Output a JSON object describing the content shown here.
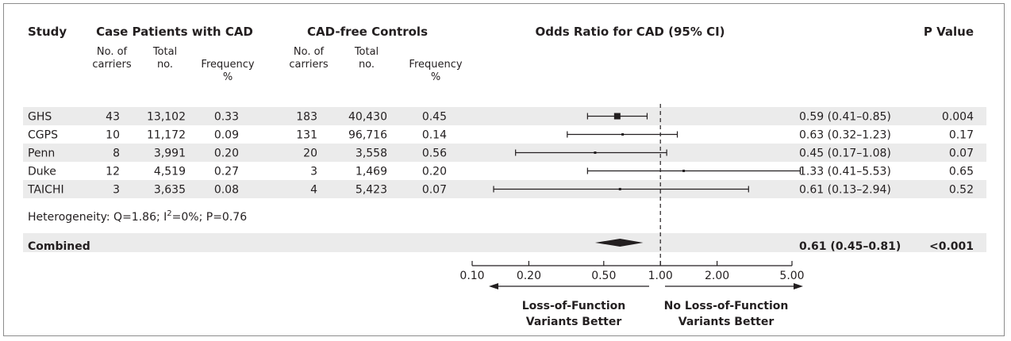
{
  "colors": {
    "shade": "#ebebeb",
    "ink": "#231f20",
    "border": "#8c8c8c"
  },
  "headers": {
    "study": "Study",
    "cases_group": "Case Patients with CAD",
    "controls_group": "CAD-free Controls",
    "or_title": "Odds Ratio for CAD (95% CI)",
    "p_value": "P Value",
    "carriers_line1": "No. of",
    "carriers_line2": "carriers",
    "total_line1": "Total",
    "total_line2": "no.",
    "freq_line1": "Frequency",
    "freq_line2": "%"
  },
  "heterogeneity": {
    "prefix": "Heterogeneity: Q=1.86; I",
    "sup": "2",
    "suffix": "=0%; P=0.76"
  },
  "combined": {
    "label": "Combined",
    "or_text": "0.61 (0.45–0.81)",
    "p": "<0.001"
  },
  "arrows": {
    "left_line1": "Loss-of-Function",
    "left_line2": "Variants Better",
    "right_line1": "No Loss-of-Function",
    "right_line2": "Variants Better"
  },
  "chart_data": {
    "type": "forest",
    "title": "Odds Ratio for CAD (95% CI)",
    "x_scale": "log",
    "xlim": [
      0.1,
      5.0
    ],
    "x_ticks": [
      {
        "value": 0.1,
        "label": "0.10"
      },
      {
        "value": 0.2,
        "label": "0.20"
      },
      {
        "value": 0.5,
        "label": "0.50"
      },
      {
        "value": 1.0,
        "label": "1.00"
      },
      {
        "value": 2.0,
        "label": "2.00"
      },
      {
        "value": 5.0,
        "label": "5.00"
      }
    ],
    "reference_line": 1.0,
    "studies": [
      {
        "study": "GHS",
        "case_carriers": "43",
        "case_total": "13,102",
        "case_freq": "0.33",
        "ctrl_carriers": "183",
        "ctrl_total": "40,430",
        "ctrl_freq": "0.45",
        "or": 0.59,
        "ci_low": 0.41,
        "ci_high": 0.85,
        "or_text": "0.59 (0.41–0.85)",
        "p": "0.004",
        "shaded": true,
        "weight": "large"
      },
      {
        "study": "CGPS",
        "case_carriers": "10",
        "case_total": "11,172",
        "case_freq": "0.09",
        "ctrl_carriers": "131",
        "ctrl_total": "96,716",
        "ctrl_freq": "0.14",
        "or": 0.63,
        "ci_low": 0.32,
        "ci_high": 1.23,
        "or_text": "0.63 (0.32–1.23)",
        "p": "0.17",
        "shaded": false,
        "weight": "small"
      },
      {
        "study": "Penn",
        "case_carriers": "8",
        "case_total": "3,991",
        "case_freq": "0.20",
        "ctrl_carriers": "20",
        "ctrl_total": "3,558",
        "ctrl_freq": "0.56",
        "or": 0.45,
        "ci_low": 0.17,
        "ci_high": 1.08,
        "or_text": "0.45 (0.17–1.08)",
        "p": "0.07",
        "shaded": true,
        "weight": "small"
      },
      {
        "study": "Duke",
        "case_carriers": "12",
        "case_total": "4,519",
        "case_freq": "0.27",
        "ctrl_carriers": "3",
        "ctrl_total": "1,469",
        "ctrl_freq": "0.20",
        "or": 1.33,
        "ci_low": 0.41,
        "ci_high": 5.53,
        "or_text": "1.33 (0.41–5.53)",
        "p": "0.65",
        "shaded": false,
        "weight": "small"
      },
      {
        "study": "TAICHI",
        "case_carriers": "3",
        "case_total": "3,635",
        "case_freq": "0.08",
        "ctrl_carriers": "4",
        "ctrl_total": "5,423",
        "ctrl_freq": "0.07",
        "or": 0.61,
        "ci_low": 0.13,
        "ci_high": 2.94,
        "or_text": "0.61 (0.13–2.94)",
        "p": "0.52",
        "shaded": true,
        "weight": "small"
      }
    ],
    "combined": {
      "or": 0.61,
      "ci_low": 0.45,
      "ci_high": 0.81
    }
  }
}
